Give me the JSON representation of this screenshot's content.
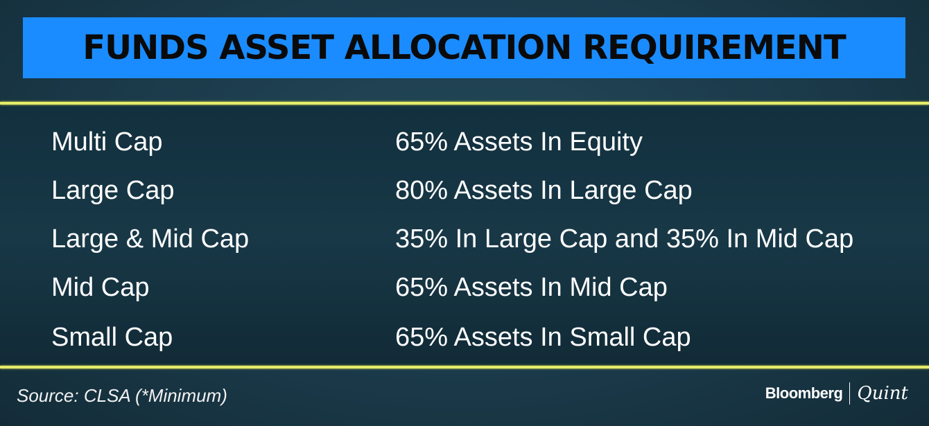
{
  "title": "FUNDS ASSET ALLOCATION REQUIREMENT",
  "rows": [
    {
      "category": "Multi Cap",
      "requirement": "65% Assets In Equity"
    },
    {
      "category": "Large Cap",
      "requirement": "80% Assets In Large Cap"
    },
    {
      "category": "Large & Mid Cap",
      "requirement": "35% In Large Cap and 35% In Mid Cap"
    },
    {
      "category": "Mid Cap",
      "requirement": "65% Assets In Mid Cap"
    },
    {
      "category": "Small Cap",
      "requirement": "65% Assets In Small Cap"
    }
  ],
  "source": "Source: CLSA (*Minimum)",
  "logo": {
    "left": "Bloomberg",
    "right": "Quint"
  },
  "colors": {
    "title_bg": "#1a8cff",
    "rule": "#e6ec6a",
    "background": "#1b3a4a"
  }
}
